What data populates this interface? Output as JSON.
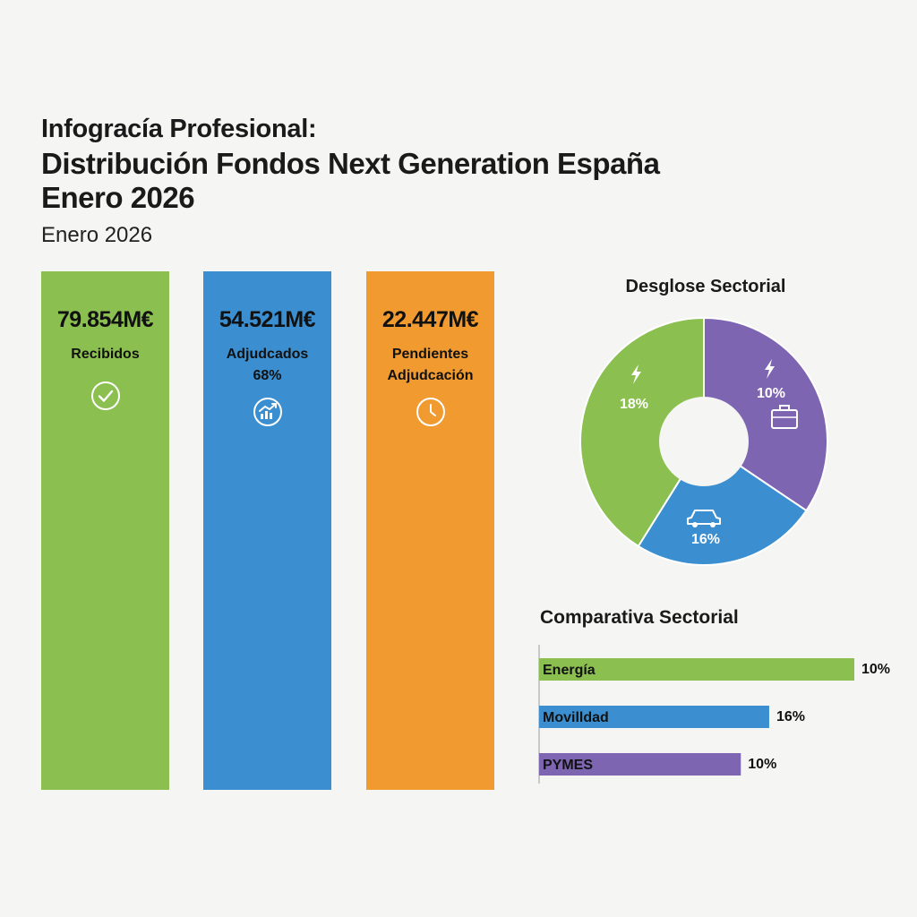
{
  "header": {
    "pre_title": "Infogracía Profesional:",
    "title_line1": "Distribución Fondos Next Generation España",
    "title_line2": "Enero 2026",
    "subtitle": "Enero 2026"
  },
  "kpis": [
    {
      "value": "79.854M€",
      "label_line1": "Recibidos",
      "label_line2": "",
      "icon": "check-circle-icon",
      "color": "#8bbf4f"
    },
    {
      "value": "54.521M€",
      "label_line1": "Adjudcados",
      "label_line2": "68%",
      "icon": "growth-chart-icon",
      "color": "#3b8fd0"
    },
    {
      "value": "22.447M€",
      "label_line1": "Pendientes",
      "label_line2": "Adjudcación",
      "icon": "clock-icon",
      "color": "#f09a30"
    }
  ],
  "chart_data": [
    {
      "type": "pie",
      "title": "Desglose Sectorial",
      "slices": [
        {
          "label": "18%",
          "value": 18,
          "color": "#8bbf4f",
          "icon": "lightning-icon"
        },
        {
          "label": "10%",
          "value": 10,
          "color": "#7e65b2",
          "icons": [
            "lightning-icon",
            "briefcase-icon"
          ]
        },
        {
          "label": "16%",
          "value": 16,
          "color": "#3b8fd0",
          "icon": "car-icon"
        }
      ]
    },
    {
      "type": "bar",
      "orientation": "horizontal",
      "title": "Comparativa Sectorial",
      "categories": [
        "Energía",
        "Movilldad",
        "PYMES"
      ],
      "values": [
        10,
        16,
        10
      ],
      "value_labels": [
        "10%",
        "16%",
        "10%"
      ],
      "bar_extent_fractions": [
        1.0,
        0.73,
        0.64
      ],
      "colors": [
        "#8bbf4f",
        "#3b8fd0",
        "#7e65b2"
      ]
    }
  ]
}
